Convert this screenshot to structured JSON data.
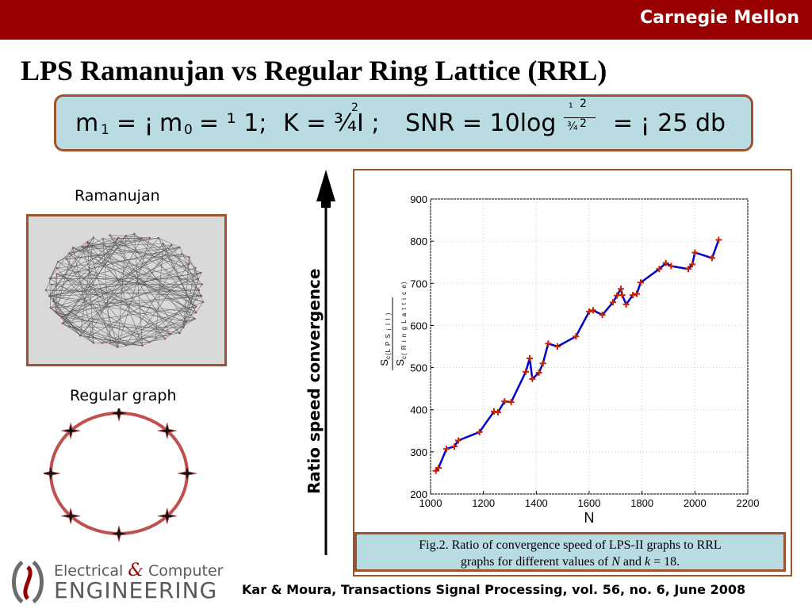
{
  "header": {
    "brand": "Carnegie Mellon",
    "bar_color": "#990000"
  },
  "title": "LPS Ramanujan vs Regular Ring Lattice (RRL)",
  "formula": {
    "m1": "m",
    "m1_sub": "1",
    "eq1": "= ¡",
    "m0": "m",
    "m0_sub": "0",
    "eq2": "= ¹ 1;",
    "k_part": "K = ¾I ;",
    "k_sup": "2",
    "snr": "SNR = 10log",
    "frac_num": "¹",
    "frac_num_sup": "2",
    "frac_den": "¾",
    "frac_den_sup": "2",
    "result": "= ¡ 25 db"
  },
  "left_panel": {
    "ramanujan_label": "Ramanujan",
    "regular_label": "Regular graph"
  },
  "arrow_label": "Ratio speed convergence",
  "chart_data": {
    "type": "line",
    "xlabel": "N",
    "xlim": [
      1000,
      2200
    ],
    "ylim": [
      200,
      900
    ],
    "xticks": [
      1000,
      1200,
      1400,
      1600,
      1800,
      2000,
      2200
    ],
    "yticks": [
      200,
      300,
      400,
      500,
      600,
      700,
      800,
      900
    ],
    "ylabel_num": "S",
    "ylabel_num_sub": "c(L P S ¡ I I )",
    "ylabel_den": "S",
    "ylabel_den_sub": "c( R i n g L a t t i c e)",
    "grid": true,
    "line_color": "#0000cc",
    "marker_color": "#cc2200",
    "series": [
      {
        "x": [
          1020,
          1030,
          1060,
          1090,
          1105,
          1185,
          1240,
          1255,
          1280,
          1305,
          1360,
          1375,
          1385,
          1410,
          1425,
          1445,
          1480,
          1550,
          1600,
          1615,
          1650,
          1690,
          1705,
          1720,
          1725,
          1740,
          1765,
          1780,
          1795,
          1865,
          1890,
          1910,
          1975,
          1990,
          2000,
          2065,
          2090
        ],
        "y": [
          255,
          262,
          307,
          313,
          327,
          347,
          396,
          394,
          420,
          418,
          490,
          522,
          473,
          488,
          510,
          557,
          550,
          574,
          633,
          636,
          625,
          655,
          671,
          687,
          672,
          650,
          672,
          675,
          702,
          734,
          748,
          741,
          734,
          745,
          773,
          760,
          803
        ]
      }
    ]
  },
  "caption": {
    "line1": "Fig.2. Ratio of convergence speed of LPS-II graphs to RRL",
    "line2_a": "graphs for different values of ",
    "line2_n": "N",
    "line2_b": " and ",
    "line2_k": "k",
    "line2_c": " = 18."
  },
  "logo": {
    "line1_a": "Electrical ",
    "line1_amp": "&",
    "line1_b": " Computer",
    "line2": "ENGINEERING"
  },
  "citation": "Kar & Moura, Transactions Signal Processing, vol. 56, no. 6, June 2008"
}
